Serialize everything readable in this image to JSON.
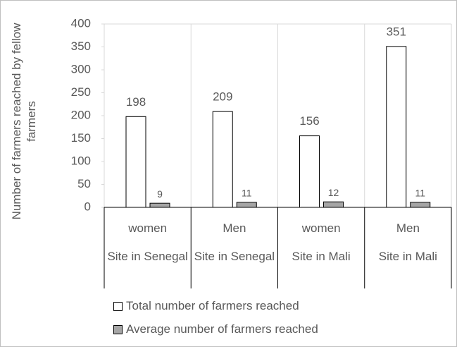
{
  "chart_data": {
    "type": "bar",
    "y_label": "Number of farmers reached by fellow farmers",
    "categories": [
      "women",
      "Men",
      "women",
      "Men"
    ],
    "groups": [
      "Site in Senegal",
      "Site in Senegal",
      "Site in Mali",
      "Site in Mali"
    ],
    "series": [
      {
        "name": "Total number of farmers reached",
        "color": "#ffffff",
        "values": [
          198,
          209,
          156,
          351
        ]
      },
      {
        "name": "Average number of farmers reached",
        "color": "#a6a6a6",
        "values": [
          9,
          11,
          12,
          11
        ]
      }
    ],
    "ylim": [
      0,
      400
    ],
    "yticks": [
      0,
      50,
      100,
      150,
      200,
      250,
      300,
      350,
      400
    ]
  }
}
